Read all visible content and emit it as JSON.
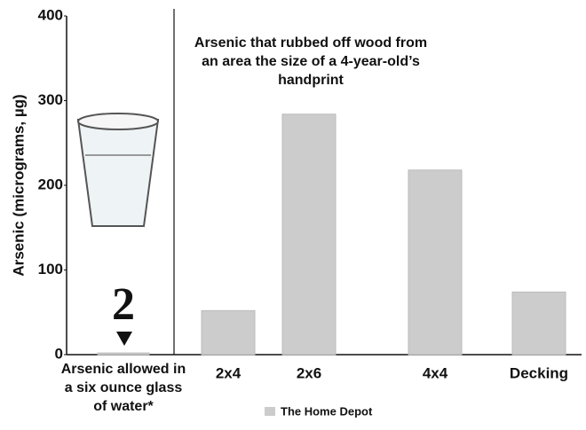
{
  "chart_data": {
    "type": "bar",
    "annotation": "Arsenic that rubbed off wood from an area the size of a 4-year-old’s handprint",
    "y_label": "Arsenic (micrograms, µg)",
    "categories": [
      "Arsenic allowed in a six ounce glass of water*",
      "2x4",
      "2x6",
      "4x4",
      "Decking"
    ],
    "series": [
      {
        "name": "The Home Depot",
        "color": "#cccccc",
        "values": [
          2,
          52,
          284,
          218,
          74
        ]
      }
    ],
    "ylim": [
      0,
      400
    ],
    "yticks": [
      0,
      100,
      200,
      300,
      400
    ]
  }
}
